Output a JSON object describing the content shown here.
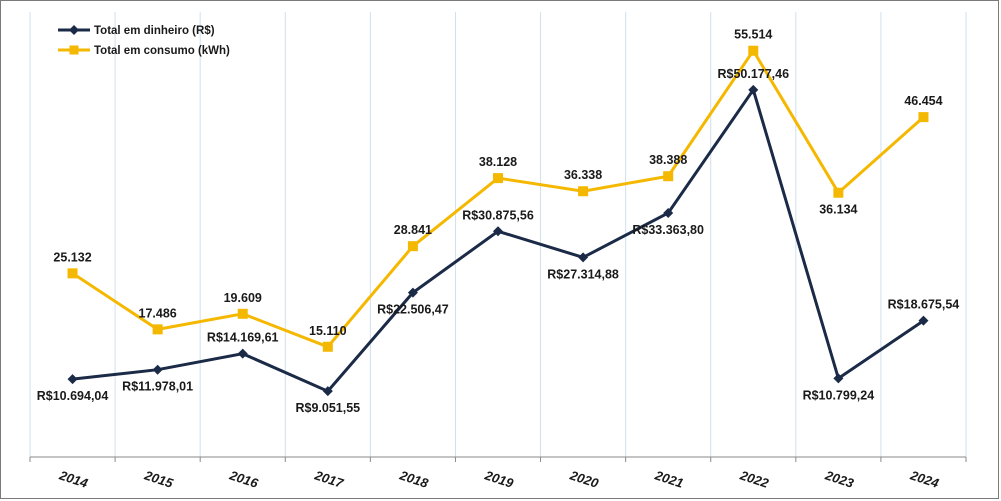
{
  "chart_data": {
    "type": "line",
    "categories": [
      "2014",
      "2015",
      "2016",
      "2017",
      "2018",
      "2019",
      "2020",
      "2021",
      "2022",
      "2023",
      "2024"
    ],
    "series": [
      {
        "name": "Total em dinheiro (R$)",
        "color": "#1b2a47",
        "marker": "diamond",
        "values": [
          10694.04,
          11978.01,
          14169.61,
          9051.55,
          22506.47,
          30875.56,
          27314.88,
          33363.8,
          50177.46,
          10799.24,
          18675.54
        ],
        "labels": [
          "R$10.694,04",
          "R$11.978,01",
          "R$14.169,61",
          "R$9.051,55",
          "R$22.506,47",
          "R$30.875,56",
          "R$27.314,88",
          "R$33.363,80",
          "R$50.177,46",
          "R$10.799,24",
          "R$18.675,54"
        ],
        "label_positions": [
          "below",
          "below",
          "above",
          "below",
          "below",
          "above",
          "below",
          "below",
          "above",
          "below",
          "above"
        ]
      },
      {
        "name": "Total em consumo (kWh)",
        "color": "#f5b800",
        "marker": "square",
        "values": [
          25132,
          17486,
          19609,
          15110,
          28841,
          38128,
          36338,
          38388,
          55514,
          36134,
          46454
        ],
        "labels": [
          "25.132",
          "17.486",
          "19.609",
          "15.110",
          "28.841",
          "38.128",
          "36.338",
          "38.388",
          "55.514",
          "36.134",
          "46.454"
        ],
        "label_positions": [
          "above",
          "above",
          "above",
          "above",
          "above",
          "above",
          "above",
          "above",
          "above",
          "below",
          "above"
        ]
      }
    ],
    "title": "",
    "xlabel": "",
    "ylabel": "",
    "ylim": [
      0,
      60000
    ],
    "y_axis_visible": false,
    "grid": "vertical",
    "legend": "top-left",
    "grid_color": "#cfe0ee"
  }
}
